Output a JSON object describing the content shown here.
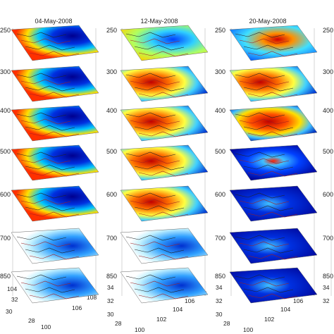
{
  "chart_data": {
    "type": "heatmap",
    "description_of_panels": "3D stacked horizontal slices",
    "panels": [
      {
        "title": "04-May-2008"
      },
      {
        "title": "12-May-2008"
      },
      {
        "title": "20-May-2008"
      },
      {
        "title": ""
      }
    ],
    "levels": [
      "250",
      "300",
      "400",
      "500",
      "600",
      "700",
      "850"
    ],
    "left_level_labels": [
      "250",
      "300",
      "400",
      "400",
      "500",
      "600",
      "700",
      "850"
    ],
    "y_ticks": [
      "34",
      "32",
      "30",
      "28"
    ],
    "x_ticks": [
      "100",
      "102",
      "104",
      "106",
      "108"
    ],
    "y_ticks_first": [
      "104",
      "32",
      "30",
      "28"
    ],
    "colormap": [
      "#00008f",
      "#0040ff",
      "#00c0ff",
      "#80ff80",
      "#ffff00",
      "#ff8000",
      "#c00000"
    ],
    "slice_patterns": {
      "04-May-2008": [
        "blue-right",
        "blue-right",
        "blue-right",
        "blue-right",
        "blue-right",
        "blue-mixed-white",
        "blue-mixed-white"
      ],
      "12-May-2008": [
        "yellow-mixed",
        "red-mixed",
        "red-mixed",
        "red-mixed",
        "red-mixed",
        "blue-mixed-white",
        "blue-mixed-white"
      ],
      "20-May-2008": [
        "cyan-mixed",
        "red-mixed",
        "red-center",
        "blue-center",
        "blue-dark",
        "blue-dark",
        "blue-dark"
      ]
    }
  }
}
